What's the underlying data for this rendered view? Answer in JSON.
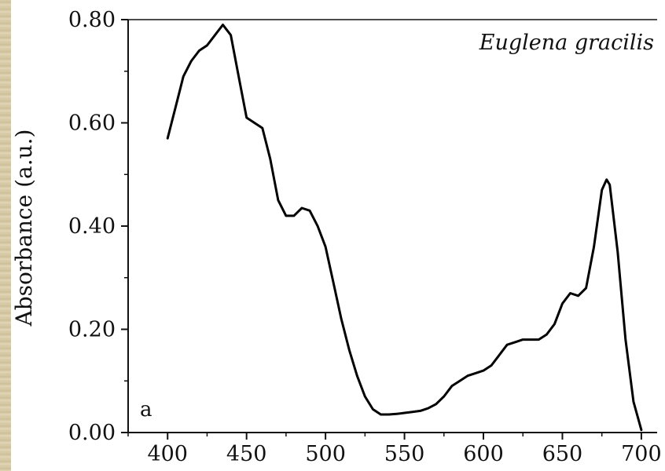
{
  "chart_data": {
    "type": "line",
    "title": "",
    "xlabel": "",
    "ylabel": "Absorbance (a.u.)",
    "xlim": [
      375,
      710
    ],
    "ylim": [
      0,
      0.8
    ],
    "x_ticks": [
      400,
      450,
      500,
      550,
      600,
      650,
      700
    ],
    "x_tick_labels": [
      "400",
      "450",
      "500",
      "550",
      "600",
      "650",
      "700"
    ],
    "y_ticks": [
      0,
      0.2,
      0.4,
      0.6,
      0.8
    ],
    "y_tick_labels": [
      "0.00",
      "0.20",
      "0.40",
      "0.60",
      "0.80"
    ],
    "annotations": {
      "species": "Euglena gracilis",
      "panel": "a"
    },
    "grid": false,
    "series": [
      {
        "x": [
          400,
          405,
          410,
          415,
          420,
          425,
          430,
          435,
          440,
          445,
          450,
          455,
          460,
          465,
          470,
          475,
          480,
          485,
          490,
          495,
          500,
          505,
          510,
          515,
          520,
          525,
          530,
          535,
          540,
          545,
          550,
          555,
          560,
          565,
          570,
          575,
          580,
          585,
          590,
          595,
          600,
          605,
          610,
          615,
          620,
          625,
          630,
          635,
          640,
          645,
          650,
          655,
          660,
          665,
          670,
          675,
          678,
          680,
          685,
          690,
          695,
          700
        ],
        "y": [
          0.57,
          0.63,
          0.69,
          0.72,
          0.74,
          0.75,
          0.77,
          0.79,
          0.77,
          0.69,
          0.61,
          0.6,
          0.59,
          0.53,
          0.45,
          0.42,
          0.42,
          0.435,
          0.43,
          0.4,
          0.36,
          0.29,
          0.22,
          0.16,
          0.11,
          0.07,
          0.045,
          0.035,
          0.035,
          0.036,
          0.038,
          0.04,
          0.042,
          0.047,
          0.055,
          0.07,
          0.09,
          0.1,
          0.11,
          0.115,
          0.12,
          0.13,
          0.15,
          0.17,
          0.175,
          0.18,
          0.18,
          0.18,
          0.19,
          0.21,
          0.25,
          0.27,
          0.265,
          0.28,
          0.36,
          0.47,
          0.49,
          0.48,
          0.35,
          0.18,
          0.06,
          0.005
        ]
      }
    ]
  }
}
